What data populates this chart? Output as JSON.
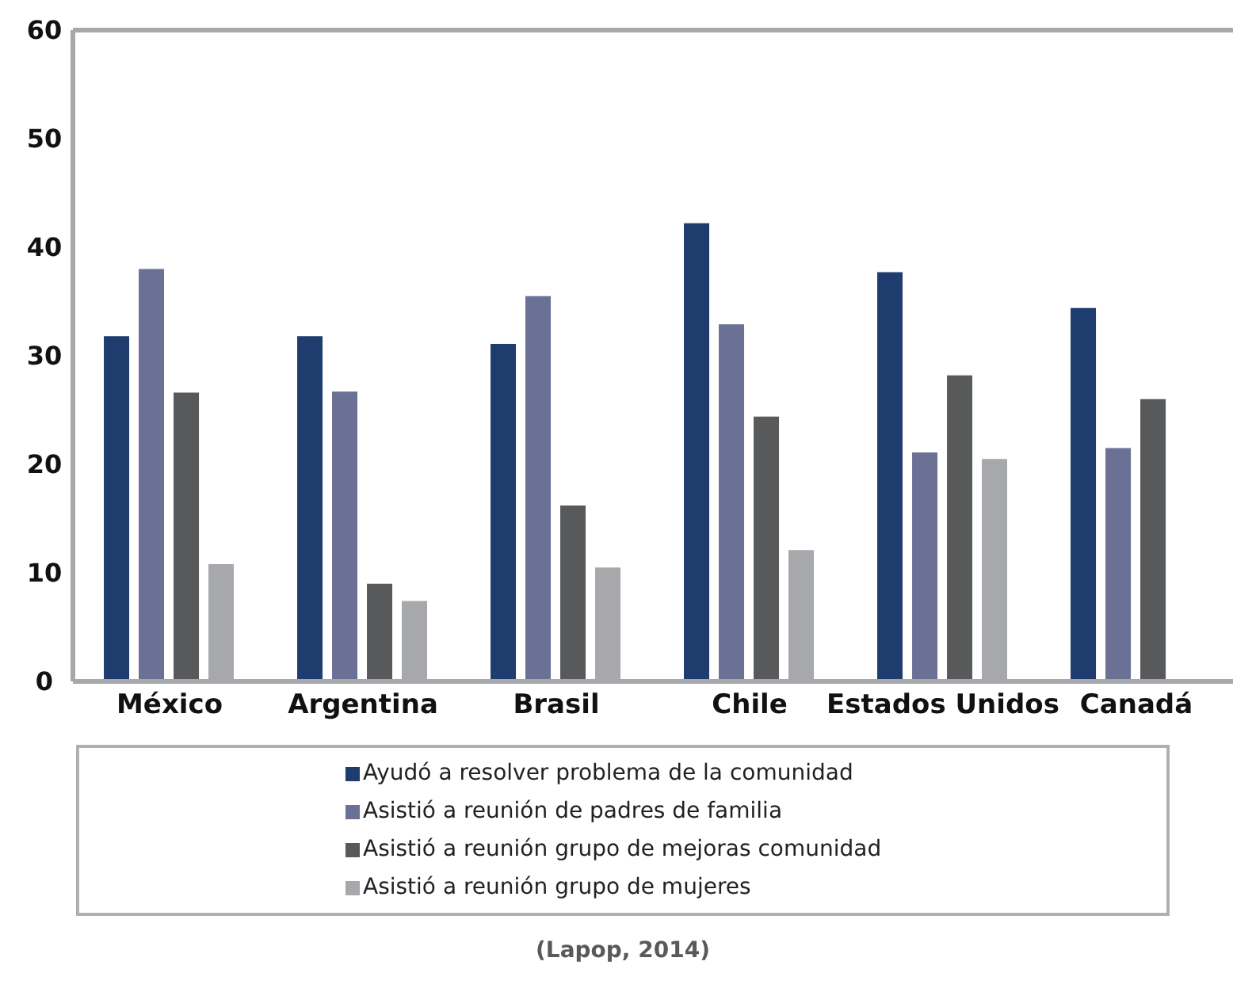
{
  "chart_data": {
    "type": "bar",
    "categories": [
      "México",
      "Argentina",
      "Brasil",
      "Chile",
      "Estados Unidos",
      "Canadá"
    ],
    "series": [
      {
        "name": "Ayudó a resolver problema de la comunidad",
        "color": "#1f3c6e",
        "values": [
          31.8,
          31.8,
          31.1,
          42.2,
          37.7,
          34.4
        ]
      },
      {
        "name": "Asistió a reunión de padres de familia",
        "color": "#6b7095",
        "values": [
          38.0,
          26.7,
          35.5,
          32.9,
          21.1,
          21.5
        ]
      },
      {
        "name": "Asistió a reunión grupo de mejoras comunidad",
        "color": "#58595b",
        "values": [
          26.6,
          9.0,
          16.2,
          24.4,
          28.2,
          26.0
        ]
      },
      {
        "name": "Asistió a reunión grupo de mujeres",
        "color": "#a7a8ab",
        "values": [
          10.8,
          7.4,
          10.5,
          12.1,
          20.5,
          null
        ]
      }
    ],
    "ylim": [
      0,
      60
    ],
    "yticks": [
      0,
      10,
      20,
      30,
      40,
      50,
      60
    ],
    "grid": false,
    "legend": "bottom",
    "annotations": [
      "(Lapop, 2014)"
    ]
  }
}
